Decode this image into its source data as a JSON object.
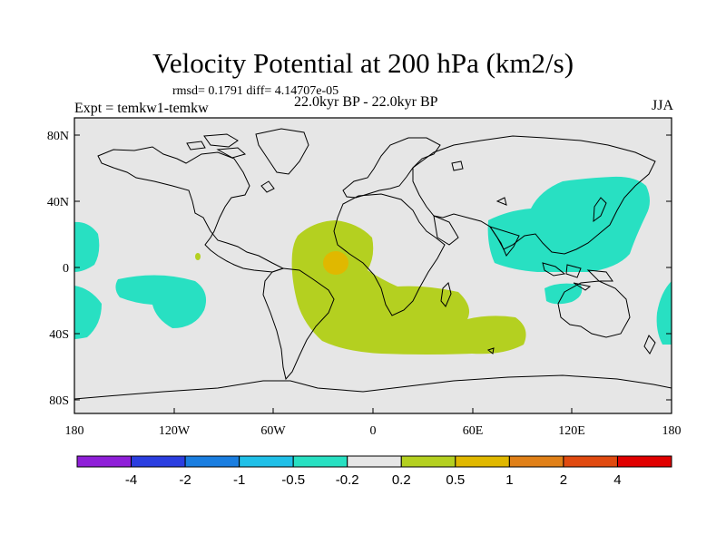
{
  "title": "Velocity Potential at 200 hPa (km2/s)",
  "stats": "rmsd= 0.1791 diff= 4.14707e-05",
  "experiment": "Expt = temkw1-temkw",
  "period": "22.0kyr BP - 22.0kyr BP",
  "season": "JJA",
  "map": {
    "background_color": "#e6e6e6",
    "lat_labels": [
      "80N",
      "40N",
      "0",
      "40S",
      "80S"
    ],
    "lon_labels": [
      "180",
      "120W",
      "60W",
      "0",
      "60E",
      "120E",
      "180"
    ]
  },
  "colorbar": {
    "colors": [
      "#8f1fd8",
      "#2b3ee0",
      "#1a7ee0",
      "#20c0e8",
      "#28e0c2",
      "#e6e6e6",
      "#b4d020",
      "#e0b800",
      "#e08018",
      "#e04a10",
      "#e00000"
    ],
    "labels": [
      "-4",
      "-2",
      "-1",
      "-0.5",
      "-0.2",
      "0.2",
      "0.5",
      "1",
      "2",
      "4"
    ]
  },
  "regions": [
    {
      "name": "positive-africa-atlantic",
      "level": "0.2",
      "color": "#b4d020"
    },
    {
      "name": "positive-max-atlantic",
      "level": "0.5",
      "color": "#e0b800"
    },
    {
      "name": "negative-asia-pacific",
      "level": "-0.2",
      "color": "#28e0c2"
    },
    {
      "name": "negative-south-pacific",
      "level": "-0.2",
      "color": "#28e0c2"
    }
  ]
}
